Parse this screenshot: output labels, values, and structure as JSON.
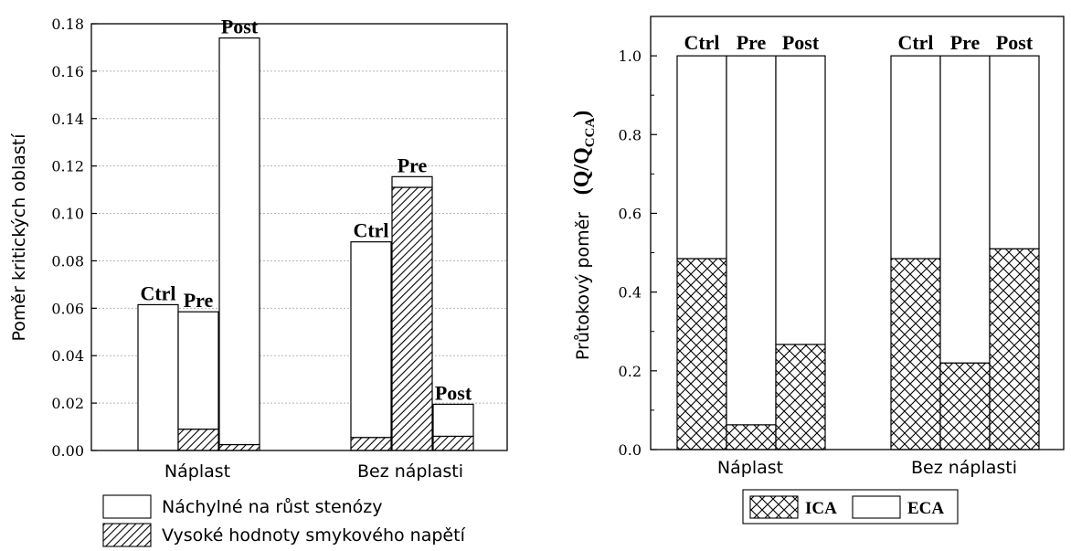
{
  "chart_data": [
    {
      "type": "bar",
      "stacked": true,
      "ylabel": "Poměr kritických oblastí",
      "ylim": [
        0,
        0.18
      ],
      "yticks": [
        "0.00",
        "0.02",
        "0.04",
        "0.06",
        "0.08",
        "0.10",
        "0.12",
        "0.14",
        "0.16",
        "0.18"
      ],
      "grid": true,
      "groups": [
        "Náplast",
        "Bez náplasti"
      ],
      "bar_labels": [
        "Ctrl",
        "Pre",
        "Post"
      ],
      "series": [
        {
          "name": "Vysoké hodnoty smykového napětí",
          "pattern": "hatch-diagonal",
          "values": [
            [
              0.0,
              0.009,
              0.0025
            ],
            [
              0.0055,
              0.111,
              0.006
            ]
          ]
        },
        {
          "name": "Náchylné na růst stenózy",
          "pattern": "none",
          "values": [
            [
              0.0615,
              0.0495,
              0.1715
            ],
            [
              0.0825,
              0.0045,
              0.0135
            ]
          ]
        }
      ],
      "legend_position": "bottom"
    },
    {
      "type": "bar",
      "stacked": true,
      "ylabel_text": "Průtokový poměr",
      "ylabel_math": [
        "(Q/Q",
        "CCA",
        ")"
      ],
      "ylim": [
        0,
        1.1
      ],
      "yticks": [
        "0.0",
        "0.2",
        "0.4",
        "0.6",
        "0.8",
        "1.0"
      ],
      "grid": false,
      "groups": [
        "Náplast",
        "Bez náplasti"
      ],
      "bar_labels": [
        "Ctrl",
        "Pre",
        "Post"
      ],
      "series": [
        {
          "name": "ICA",
          "pattern": "crosshatch",
          "values": [
            [
              0.485,
              0.063,
              0.267
            ],
            [
              0.485,
              0.22,
              0.51
            ]
          ]
        },
        {
          "name": "ECA",
          "pattern": "none",
          "values": [
            [
              0.515,
              0.937,
              0.733
            ],
            [
              0.515,
              0.78,
              0.49
            ]
          ]
        }
      ],
      "legend_position": "bottom"
    }
  ]
}
